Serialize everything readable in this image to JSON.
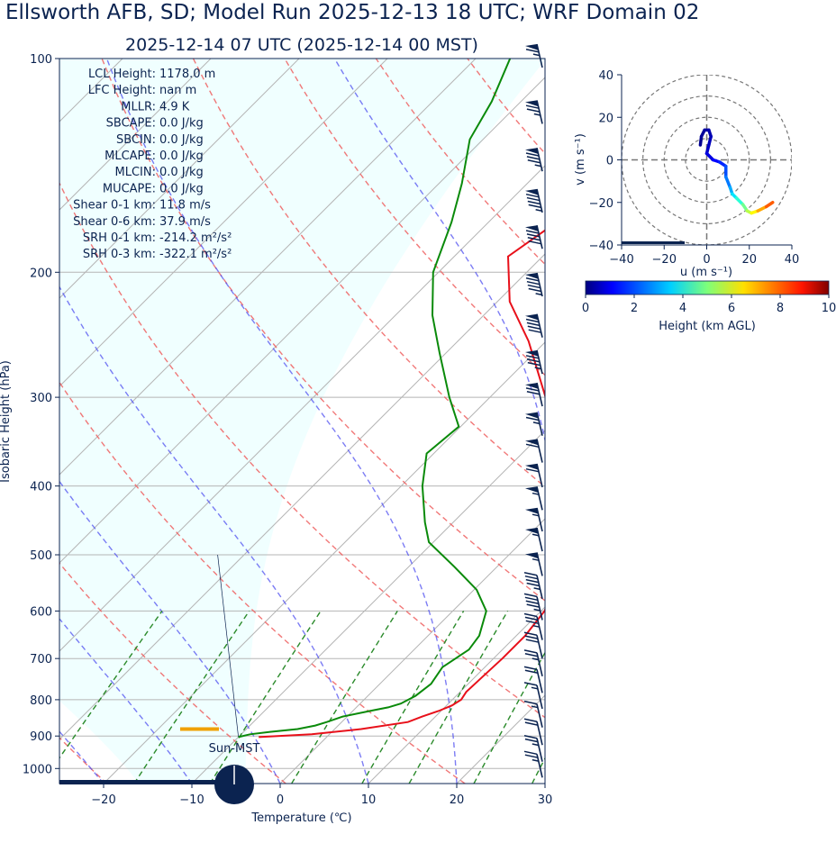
{
  "title": "Ellsworth AFB, SD; Model Run 2025-12-13 18 UTC; WRF Domain 02",
  "subtitle": "2025-12-14 07 UTC  (2025-12-14 00 MST)",
  "colors": {
    "temperature": "#e8101a",
    "dewpoint": "#0a8a0a",
    "parcel_band": "#f0ffff",
    "navy": "#0b2350",
    "lcl_marker": "#f0a000"
  },
  "chart_data": [
    {
      "type": "skew-t",
      "xlabel": "Temperature (℃)",
      "ylabel": "Isobaric Height (hPa)",
      "xlim": [
        -25,
        30
      ],
      "ylim": [
        1050,
        100
      ],
      "x_ticks": [
        "−20",
        "−10",
        "0",
        "10",
        "20",
        "30"
      ],
      "x_tick_values": [
        -20,
        -10,
        0,
        10,
        20,
        30
      ],
      "y_ticks": [
        "100",
        "200",
        "300",
        "400",
        "500",
        "600",
        "700",
        "800",
        "900",
        "1000"
      ],
      "y_tick_values": [
        100,
        200,
        300,
        400,
        500,
        600,
        700,
        800,
        900,
        1000
      ],
      "temperature_profile": [
        [
          903,
          -7.7
        ],
        [
          895,
          -2.0
        ],
        [
          880,
          3.0
        ],
        [
          860,
          7.5
        ],
        [
          845,
          8.5
        ],
        [
          830,
          9.7
        ],
        [
          815,
          10.6
        ],
        [
          800,
          11.0
        ],
        [
          780,
          10.7
        ],
        [
          750,
          10.8
        ],
        [
          700,
          11.0
        ],
        [
          650,
          11.0
        ],
        [
          600,
          10.4
        ],
        [
          550,
          8.6
        ],
        [
          500,
          6.4
        ],
        [
          450,
          3.3
        ],
        [
          400,
          -0.9
        ],
        [
          350,
          -6.8
        ],
        [
          300,
          -13.7
        ],
        [
          250,
          -22.0
        ],
        [
          220,
          -28.6
        ],
        [
          190,
          -33.9
        ],
        [
          170,
          -32.3
        ],
        [
          150,
          -32.9
        ],
        [
          130,
          -35.0
        ],
        [
          110,
          -38.4
        ],
        [
          100,
          -41.2
        ]
      ],
      "dewpoint_profile": [
        [
          903,
          -10.0
        ],
        [
          895,
          -9.0
        ],
        [
          888,
          -7.0
        ],
        [
          880,
          -4.2
        ],
        [
          870,
          -2.6
        ],
        [
          860,
          -1.7
        ],
        [
          845,
          -0.5
        ],
        [
          830,
          1.9
        ],
        [
          820,
          3.6
        ],
        [
          810,
          4.6
        ],
        [
          790,
          5.4
        ],
        [
          760,
          5.8
        ],
        [
          720,
          5.2
        ],
        [
          680,
          6.2
        ],
        [
          650,
          5.8
        ],
        [
          600,
          3.8
        ],
        [
          560,
          0.3
        ],
        [
          520,
          -4.8
        ],
        [
          480,
          -10.5
        ],
        [
          450,
          -13.2
        ],
        [
          400,
          -17.6
        ],
        [
          360,
          -20.8
        ],
        [
          330,
          -20.2
        ],
        [
          300,
          -24.6
        ],
        [
          260,
          -30.7
        ],
        [
          230,
          -35.8
        ],
        [
          200,
          -40.6
        ],
        [
          170,
          -44.2
        ],
        [
          150,
          -47.4
        ],
        [
          130,
          -51.5
        ],
        [
          115,
          -53.3
        ],
        [
          100,
          -56.1
        ]
      ],
      "lcl_marker_pressure": 880,
      "wind_barbs": [
        {
          "p": 100,
          "kt": 65
        },
        {
          "p": 120,
          "kt": 75
        },
        {
          "p": 140,
          "kt": 85
        },
        {
          "p": 160,
          "kt": 95
        },
        {
          "p": 180,
          "kt": 90
        },
        {
          "p": 210,
          "kt": 95
        },
        {
          "p": 240,
          "kt": 90
        },
        {
          "p": 270,
          "kt": 85
        },
        {
          "p": 300,
          "kt": 70
        },
        {
          "p": 330,
          "kt": 65
        },
        {
          "p": 360,
          "kt": 60
        },
        {
          "p": 390,
          "kt": 60
        },
        {
          "p": 420,
          "kt": 55
        },
        {
          "p": 450,
          "kt": 55
        },
        {
          "p": 480,
          "kt": 55
        },
        {
          "p": 520,
          "kt": 55
        },
        {
          "p": 560,
          "kt": 45
        },
        {
          "p": 600,
          "kt": 45
        },
        {
          "p": 640,
          "kt": 35
        },
        {
          "p": 680,
          "kt": 30
        },
        {
          "p": 720,
          "kt": 25
        },
        {
          "p": 760,
          "kt": 20
        },
        {
          "p": 800,
          "kt": 15
        },
        {
          "p": 850,
          "kt": 15
        },
        {
          "p": 900,
          "kt": 20
        },
        {
          "p": 950,
          "kt": 25
        },
        {
          "p": 1000,
          "kt": 25
        }
      ],
      "stats": [
        "LCL Height: 1178.0 m",
        "LFC Height: nan m",
        "MLLR: 4.9 K",
        "SBCAPE: 0.0 J/kg",
        "SBCIN: 0.0 J/kg",
        "MLCAPE: 0.0 J/kg",
        "MLCIN: 0.0 J/kg",
        "MUCAPE: 0.0 J/kg",
        "Shear 0-1 km: 11.8 m/s",
        "Shear 0-6 km: 37.9 m/s",
        "SRH 0-1 km: -214.2 m²/s²",
        "SRH 0-3 km: -322.1 m²/s²"
      ],
      "sun_label": "Sun-MST"
    },
    {
      "type": "hodograph",
      "xlabel": "u (m s⁻¹)",
      "ylabel": "v (m s⁻¹)",
      "xlim": [
        -40,
        40
      ],
      "ylim": [
        -40,
        40
      ],
      "x_ticks": [
        "−40",
        "−20",
        "0",
        "20",
        "40"
      ],
      "x_tick_values": [
        -40,
        -20,
        0,
        20,
        40
      ],
      "y_ticks": [
        "40",
        "20",
        "0",
        "−20",
        "−40"
      ],
      "y_tick_values": [
        40,
        20,
        0,
        -20,
        -40
      ],
      "rings": [
        10,
        20,
        30,
        40
      ],
      "points": [
        {
          "u": -3,
          "v": 7,
          "h": 0.1
        },
        {
          "u": -2.5,
          "v": 11,
          "h": 0.2
        },
        {
          "u": -1,
          "v": 14,
          "h": 0.3
        },
        {
          "u": 1,
          "v": 14,
          "h": 0.4
        },
        {
          "u": 2,
          "v": 11,
          "h": 0.5
        },
        {
          "u": 1,
          "v": 7,
          "h": 0.6
        },
        {
          "u": 0,
          "v": 3,
          "h": 0.8
        },
        {
          "u": 3,
          "v": 0,
          "h": 1.1
        },
        {
          "u": 6,
          "v": -1,
          "h": 1.4
        },
        {
          "u": 9,
          "v": -3,
          "h": 1.8
        },
        {
          "u": 9,
          "v": -8,
          "h": 2.2
        },
        {
          "u": 11,
          "v": -13,
          "h": 2.7
        },
        {
          "u": 12,
          "v": -16,
          "h": 3.2
        },
        {
          "u": 14,
          "v": -18,
          "h": 3.8
        },
        {
          "u": 17,
          "v": -21,
          "h": 4.5
        },
        {
          "u": 19,
          "v": -24,
          "h": 5.2
        },
        {
          "u": 21,
          "v": -25,
          "h": 5.9
        },
        {
          "u": 24,
          "v": -24,
          "h": 6.7
        },
        {
          "u": 28,
          "v": -22,
          "h": 7.5
        },
        {
          "u": 31,
          "v": -20,
          "h": 8.2
        }
      ],
      "colorbar": {
        "label": "Height (km AGL)",
        "range": [
          0,
          10
        ],
        "ticks": [
          "0",
          "2",
          "4",
          "6",
          "8",
          "10"
        ],
        "tick_values": [
          0,
          2,
          4,
          6,
          8,
          10
        ]
      }
    }
  ]
}
